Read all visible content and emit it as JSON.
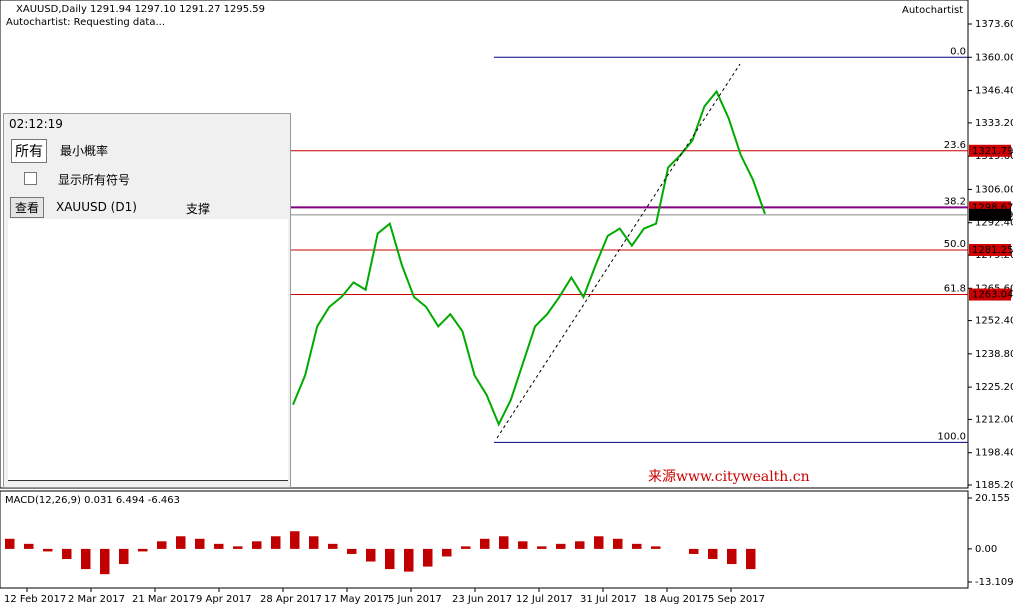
{
  "header": {
    "symbol": "XAUUSD,Daily  1291.94 1297.10 1291.27 1295.59",
    "status": "Autochartist: Requesting data...",
    "brand": "Autochartist"
  },
  "chart": {
    "ylim": [
      1185.2,
      1373.6
    ],
    "yticks": [
      {
        "value": 1373.6,
        "label": "1373.60"
      },
      {
        "value": 1360,
        "label": "1360.00"
      },
      {
        "value": 1346.4,
        "label": "1346.40"
      },
      {
        "value": 1333.2,
        "label": "1333.20"
      },
      {
        "value": 1319.6,
        "label": "1319.60"
      },
      {
        "value": 1306,
        "label": "1306.00"
      },
      {
        "value": 1292.4,
        "label": "1292.40"
      },
      {
        "value": 1279.2,
        "label": "1279.20"
      },
      {
        "value": 1265.6,
        "label": "1265.60"
      },
      {
        "value": 1252.4,
        "label": "1252.40"
      },
      {
        "value": 1238.8,
        "label": "1238.80"
      },
      {
        "value": 1225.2,
        "label": "1225.20"
      },
      {
        "value": 1212,
        "label": "1212.00"
      },
      {
        "value": 1198.4,
        "label": "1198.40"
      },
      {
        "value": 1185.2,
        "label": "1185.20"
      }
    ],
    "dates": [
      "12 Feb 2017",
      "2 Mar 2017",
      "21 Mar 2017",
      "9 Apr 2017",
      "28 Apr 2017",
      "17 May 2017",
      "5 Jun 2017",
      "23 Jun 2017",
      "12 Jul 2017",
      "31 Jul 2017",
      "18 Aug 2017",
      "5 Sep 2017"
    ],
    "closes": [
      1218,
      1230,
      1250,
      1258,
      1262,
      1268,
      1265,
      1288,
      1292,
      1275,
      1262,
      1258,
      1250,
      1255,
      1248,
      1230,
      1222,
      1210,
      1220,
      1235,
      1250,
      1255,
      1262,
      1270,
      1262,
      1275,
      1287,
      1290,
      1283,
      1290,
      1292,
      1315,
      1320,
      1326,
      1340,
      1346,
      1335,
      1320,
      1310,
      1296
    ],
    "fib_levels": [
      {
        "ratio": "0.0",
        "price": 1360,
        "color": "#000080"
      },
      {
        "ratio": "23.6",
        "price": 1321.79,
        "color": "#cc0000"
      },
      {
        "ratio": "38.2",
        "price": 1298.67,
        "color": "#800080"
      },
      {
        "ratio": "50.0",
        "price": 1281.25,
        "color": "#cc0000"
      },
      {
        "ratio": "61.8",
        "price": 1263.04,
        "color": "#cc0000"
      },
      {
        "ratio": "100.0",
        "price": 1202.6,
        "color": "#000080"
      }
    ],
    "current_price": 1295.59,
    "watermark": "来源www.citywealth.cn"
  },
  "macd": {
    "label": "MACD(12,26,9) 0.031 6.494 -6.463",
    "ylim": [
      -13.109,
      20.155
    ],
    "yticks": [
      {
        "value": 20.155,
        "label": "20.155"
      },
      {
        "value": 0,
        "label": "0.00"
      },
      {
        "value": -13.109,
        "label": "-13.109"
      }
    ],
    "hist": [
      4,
      2,
      -1,
      -4,
      -8,
      -10,
      -6,
      -1,
      3,
      5,
      4,
      2,
      1,
      3,
      5,
      7,
      5,
      2,
      -2,
      -5,
      -8,
      -9,
      -7,
      -3,
      1,
      4,
      5,
      3,
      1,
      2,
      3,
      5,
      4,
      2,
      1,
      0,
      -2,
      -4,
      -6,
      -8
    ]
  },
  "panel": {
    "time": "02:12:19",
    "filter": "所有",
    "probability": "最小概率",
    "show_all": "显示所有符号",
    "view": "查看",
    "symbol": "XAUUSD (D1)",
    "pattern": "支撑"
  }
}
